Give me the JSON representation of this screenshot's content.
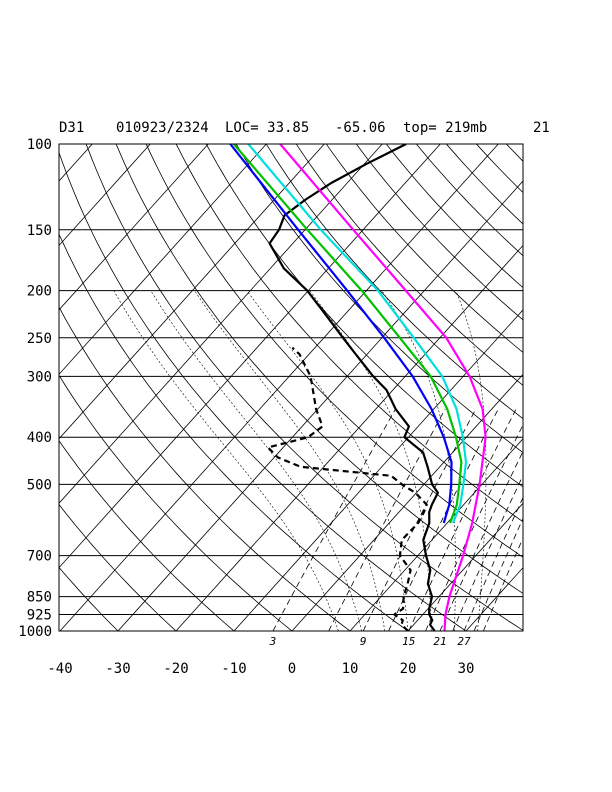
{
  "header": {
    "station": "D31",
    "datetime": "010923/2324",
    "location": "LOC= 33.85",
    "longitude": "-65.06",
    "top": "top= 219mb",
    "extra": "21"
  },
  "chart_data": {
    "type": "line",
    "subtype": "skew-T log-P thermodynamic diagram",
    "pressure_levels": [
      100,
      150,
      200,
      250,
      300,
      400,
      500,
      700,
      850,
      925,
      1000
    ],
    "pressure_labels": [
      "100",
      "150",
      "200",
      "250",
      "300",
      "400",
      "500",
      "700",
      "850",
      "925",
      "1000"
    ],
    "temp_ticks": [
      -40,
      -30,
      -20,
      -10,
      0,
      10,
      20,
      30
    ],
    "temp_labels": [
      "-40",
      "-30",
      "-20",
      "-10",
      "0",
      "10",
      "20",
      "30"
    ],
    "mixing_ratio_labels": [
      "3",
      "9",
      "15",
      "21",
      "27"
    ],
    "xlim": [
      -40,
      40
    ],
    "ylim": [
      1000,
      100
    ],
    "y_scale": "log",
    "grid": true,
    "series": [
      {
        "color": "#000000",
        "style": "solid",
        "points": [
          [
            1000,
            24.6
          ],
          [
            970,
            22.8
          ],
          [
            950,
            22.5
          ],
          [
            925,
            21.1
          ],
          [
            900,
            20.2
          ],
          [
            850,
            18.8
          ],
          [
            800,
            16.1
          ],
          [
            750,
            14.4
          ],
          [
            700,
            11.4
          ],
          [
            650,
            8.5
          ],
          [
            600,
            6.9
          ],
          [
            570,
            5.2
          ],
          [
            550,
            4.5
          ],
          [
            520,
            3.7
          ],
          [
            500,
            1.4
          ],
          [
            460,
            -2.1
          ],
          [
            430,
            -5.1
          ],
          [
            400,
            -10.7
          ],
          [
            380,
            -11.6
          ],
          [
            350,
            -16.6
          ],
          [
            320,
            -21.1
          ],
          [
            300,
            -25.5
          ],
          [
            270,
            -32.0
          ],
          [
            250,
            -36.7
          ],
          [
            220,
            -44.4
          ],
          [
            200,
            -50.2
          ],
          [
            180,
            -57.7
          ],
          [
            160,
            -64.0
          ],
          [
            150,
            -64.5
          ],
          [
            140,
            -65.8
          ],
          [
            130,
            -64.6
          ],
          [
            120,
            -62.7
          ],
          [
            110,
            -59.7
          ],
          [
            100,
            -55.9
          ]
        ]
      },
      {
        "color": "#000000",
        "style": "dashed",
        "points": [
          [
            1000,
            20.0
          ],
          [
            970,
            17.9
          ],
          [
            950,
            17.4
          ],
          [
            925,
            15.1
          ],
          [
            900,
            15.7
          ],
          [
            850,
            13.9
          ],
          [
            800,
            12.6
          ],
          [
            750,
            11.0
          ],
          [
            700,
            6.9
          ],
          [
            650,
            4.8
          ],
          [
            600,
            5.0
          ],
          [
            570,
            4.3
          ],
          [
            550,
            3.6
          ],
          [
            520,
            -0.2
          ],
          [
            500,
            -3.8
          ],
          [
            480,
            -7.0
          ],
          [
            460,
            -24.0
          ],
          [
            440,
            -29.4
          ],
          [
            420,
            -32.6
          ],
          [
            400,
            -27.3
          ],
          [
            380,
            -26.5
          ],
          [
            350,
            -30.3
          ],
          [
            300,
            -36.3
          ],
          [
            270,
            -41.7
          ],
          [
            262,
            -43.9
          ]
        ]
      },
      {
        "color": "#0000ff",
        "style": "solid",
        "points": [
          [
            600,
            9.4
          ],
          [
            550,
            7.5
          ],
          [
            500,
            4.7
          ],
          [
            450,
            1.3
          ],
          [
            400,
            -3.9
          ],
          [
            350,
            -10.4
          ],
          [
            300,
            -18.7
          ],
          [
            250,
            -29.6
          ],
          [
            200,
            -43.3
          ],
          [
            150,
            -61.2
          ],
          [
            100,
            -86.2
          ]
        ]
      },
      {
        "color": "#00c000",
        "style": "solid",
        "points": [
          [
            600,
            10.5
          ],
          [
            550,
            8.8
          ],
          [
            500,
            6.1
          ],
          [
            450,
            3.0
          ],
          [
            400,
            -1.8
          ],
          [
            350,
            -7.7
          ],
          [
            300,
            -15.6
          ],
          [
            250,
            -26.9
          ],
          [
            200,
            -40.8
          ],
          [
            150,
            -59.6
          ],
          [
            100,
            -85.6
          ]
        ]
      },
      {
        "color": "#00e0e0",
        "style": "solid",
        "points": [
          [
            600,
            11.0
          ],
          [
            550,
            9.4
          ],
          [
            500,
            6.8
          ],
          [
            450,
            3.8
          ],
          [
            400,
            -0.6
          ],
          [
            350,
            -6.1
          ],
          [
            300,
            -13.6
          ],
          [
            250,
            -24.5
          ],
          [
            200,
            -38.0
          ],
          [
            150,
            -57.3
          ],
          [
            100,
            -83.1
          ]
        ]
      },
      {
        "color": "#ff00ff",
        "style": "solid",
        "points": [
          [
            1000,
            26.3
          ],
          [
            925,
            23.9
          ],
          [
            850,
            21.8
          ],
          [
            700,
            17.8
          ],
          [
            600,
            14.3
          ],
          [
            500,
            9.6
          ],
          [
            400,
            3.3
          ],
          [
            350,
            -1.6
          ],
          [
            300,
            -8.9
          ],
          [
            250,
            -18.9
          ],
          [
            200,
            -33.2
          ],
          [
            150,
            -51.7
          ],
          [
            100,
            -77.6
          ]
        ]
      }
    ]
  }
}
